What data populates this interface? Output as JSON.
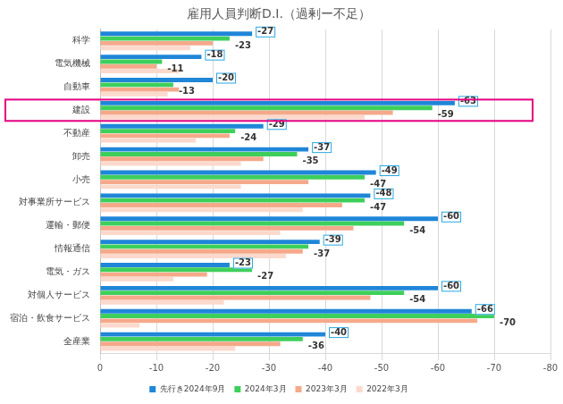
{
  "chart_data": {
    "type": "bar",
    "title": "雇用人員判断D.I.（過剰ー不足）",
    "orientation": "horizontal",
    "categories": [
      "科学",
      "電気機械",
      "自動車",
      "建設",
      "不動産",
      "卸売",
      "小売",
      "対事業所サービス",
      "運輸・郵便",
      "情報通信",
      "電気・ガス",
      "対個人サービス",
      "宿泊・飲食サービス",
      "全産業"
    ],
    "series": [
      {
        "name": "先行き2024年9月",
        "color": "#1f86d8",
        "data_labels": true,
        "values": [
          -27,
          -18,
          -20,
          -63,
          -29,
          -37,
          -49,
          -48,
          -60,
          -39,
          -23,
          -60,
          -66,
          -40
        ]
      },
      {
        "name": "2024年3月",
        "color": "#3ecf5b",
        "data_labels": true,
        "values": [
          -23,
          -11,
          -13,
          -59,
          -24,
          -35,
          -47,
          -47,
          -54,
          -37,
          -27,
          -54,
          -70,
          -36
        ]
      },
      {
        "name": "2023年3月",
        "color": "#f5a98a",
        "values": [
          -20,
          -10,
          -14,
          -52,
          -23,
          -29,
          -37,
          -43,
          -45,
          -36,
          -19,
          -48,
          -67,
          -32
        ]
      },
      {
        "name": "2022年3月",
        "color": "#fbd9cc",
        "values": [
          -16,
          -14,
          -12,
          -47,
          -17,
          -25,
          -25,
          -36,
          -32,
          -33,
          -13,
          -22,
          -7,
          -24
        ]
      }
    ],
    "xlim": [
      0,
      -80
    ],
    "xticks": [
      0,
      -10,
      -20,
      -30,
      -40,
      -50,
      -60,
      -70,
      -80
    ],
    "grid": true,
    "legend": "bottom",
    "annotations": [
      {
        "type": "box",
        "category": "建設",
        "color": "#e4007f"
      }
    ]
  }
}
